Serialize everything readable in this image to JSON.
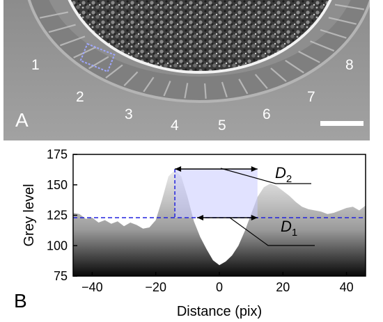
{
  "panel_a": {
    "label": "A",
    "region_numbers": [
      "1",
      "2",
      "3",
      "4",
      "5",
      "6",
      "7",
      "8"
    ]
  },
  "panel_b": {
    "label": "B"
  },
  "chart_data": {
    "type": "area",
    "xlabel": "Distance (pix)",
    "ylabel": "Grey level",
    "xlim": [
      -46,
      46
    ],
    "ylim": [
      75,
      175
    ],
    "xticks": [
      -40,
      -20,
      0,
      20,
      40
    ],
    "yticks": [
      75,
      100,
      125,
      150,
      175
    ],
    "grid": false,
    "series": [
      {
        "x": [
          -46,
          -44,
          -42,
          -40,
          -38,
          -36,
          -34,
          -32,
          -30,
          -28,
          -26,
          -24,
          -22,
          -20,
          -18,
          -16,
          -14,
          -12,
          -10,
          -8,
          -6,
          -4,
          -2,
          0,
          2,
          4,
          6,
          8,
          10,
          12,
          14,
          16,
          18,
          20,
          22,
          24,
          26,
          28,
          30,
          32,
          34,
          36,
          38,
          40,
          42,
          44,
          46
        ],
        "values": [
          127,
          126,
          122,
          123,
          119,
          121,
          118,
          120,
          116,
          119,
          117,
          114,
          115,
          121,
          138,
          157,
          162,
          157,
          140,
          120,
          107,
          97,
          88,
          84,
          87,
          92,
          100,
          112,
          126,
          140,
          148,
          151,
          149,
          145,
          141,
          136,
          132,
          130,
          129,
          128,
          126,
          127,
          129,
          131,
          132,
          129,
          133
        ]
      }
    ],
    "reference_line": {
      "y": 123,
      "style": "dashed"
    },
    "vertical_marker": {
      "x": -14,
      "style": "dashed"
    },
    "shaded_range": {
      "x": [
        -14,
        12
      ],
      "y": [
        123,
        163
      ]
    },
    "annotations": [
      {
        "id": "D2",
        "letter": "D",
        "subscript": "2",
        "x_range": [
          -14,
          12
        ],
        "y": 163
      },
      {
        "id": "D1",
        "letter": "D",
        "subscript": "1",
        "x_range": [
          -7,
          12
        ],
        "y": 123
      }
    ],
    "scale_bar": true
  }
}
